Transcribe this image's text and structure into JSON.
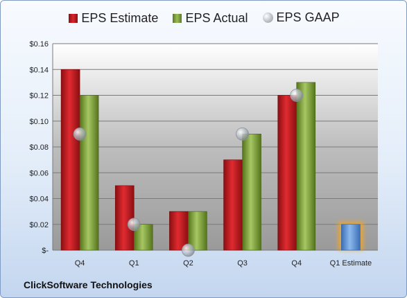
{
  "company": "ClickSoftware Technologies",
  "legend": {
    "estimate": "EPS Estimate",
    "actual": "EPS Actual",
    "gaap": "EPS GAAP"
  },
  "colors": {
    "estimate": "#c0282b",
    "actual": "#9bbb59",
    "gaap": "#a9aeb6",
    "forecast": "#6fa0dc",
    "forecast_glow": "#f5a623"
  },
  "chart_data": {
    "type": "bar",
    "categories": [
      "Q4",
      "Q1",
      "Q2",
      "Q3",
      "Q4",
      "Q1 Estimate"
    ],
    "series": [
      {
        "name": "EPS Estimate",
        "values": [
          0.14,
          0.05,
          0.03,
          0.07,
          0.12,
          null
        ]
      },
      {
        "name": "EPS Actual",
        "values": [
          0.12,
          0.02,
          0.03,
          0.09,
          0.13,
          null
        ]
      },
      {
        "name": "EPS GAAP",
        "values": [
          0.09,
          0.02,
          0.0,
          0.09,
          0.12,
          null
        ]
      },
      {
        "name": "Q1 Estimate",
        "values": [
          null,
          null,
          null,
          null,
          null,
          0.02
        ]
      }
    ],
    "ylim": [
      0,
      0.16
    ],
    "yticks": [
      0.16,
      0.14,
      0.12,
      0.1,
      0.08,
      0.06,
      0.04,
      0.02,
      0
    ],
    "ytick_labels": [
      "$0.16",
      "$0.14",
      "$0.12",
      "$0.10",
      "$0.08",
      "$0.06",
      "$0.04",
      "$0.02",
      "$-"
    ],
    "grid": true,
    "legend_position": "top"
  }
}
